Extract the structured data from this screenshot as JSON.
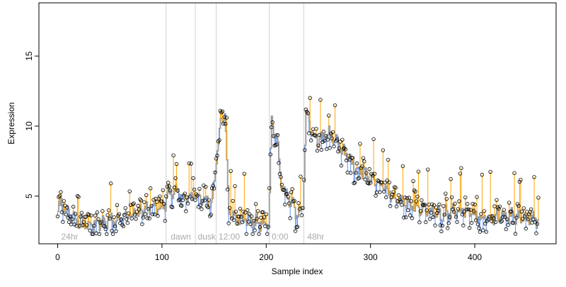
{
  "chart_data": {
    "type": "scatter",
    "xlabel": "Sample index",
    "ylabel": "Expression",
    "xlim": [
      -18,
      478
    ],
    "ylim": [
      1.6,
      18.8
    ],
    "x_ticks": [
      0,
      100,
      200,
      300,
      400
    ],
    "y_ticks": [
      5,
      10,
      15
    ],
    "grid": false,
    "colors": {
      "fitted_line": "#a0a0a0",
      "residual_above": "#ffa500",
      "residual_below": "#6495ed",
      "points_stroke": "#000000",
      "vlines": "#d3d3d3",
      "annotation_text": "#a9a9a9"
    },
    "vlines": [
      104,
      132,
      152,
      203,
      236
    ],
    "annotations": [
      {
        "x": 2,
        "label": "24hr"
      },
      {
        "x": 107,
        "label": "dawn"
      },
      {
        "x": 133,
        "label": "dusk"
      },
      {
        "x": 153,
        "label": "12:00"
      },
      {
        "x": 204,
        "label": "0:00"
      },
      {
        "x": 238,
        "label": "48hr"
      }
    ],
    "anchors": [
      [
        0,
        3.8
      ],
      [
        3,
        4.5
      ],
      [
        6,
        4.0
      ],
      [
        10,
        3.7
      ],
      [
        15,
        3.4
      ],
      [
        20,
        3.2
      ],
      [
        25,
        3.0
      ],
      [
        30,
        3.0
      ],
      [
        40,
        3.0
      ],
      [
        50,
        3.2
      ],
      [
        60,
        3.4
      ],
      [
        70,
        3.6
      ],
      [
        80,
        3.9
      ],
      [
        90,
        4.3
      ],
      [
        95,
        4.2
      ],
      [
        100,
        4.0
      ],
      [
        105,
        5.0
      ],
      [
        110,
        5.4
      ],
      [
        120,
        5.1
      ],
      [
        130,
        5.0
      ],
      [
        140,
        4.6
      ],
      [
        148,
        4.7
      ],
      [
        152,
        7.5
      ],
      [
        156,
        10.3
      ],
      [
        160,
        11.3
      ],
      [
        164,
        4.0
      ],
      [
        170,
        3.4
      ],
      [
        180,
        3.3
      ],
      [
        190,
        3.1
      ],
      [
        198,
        3.0
      ],
      [
        202,
        2.9
      ],
      [
        205,
        10.3
      ],
      [
        210,
        9.0
      ],
      [
        215,
        5.4
      ],
      [
        220,
        5.0
      ],
      [
        225,
        4.3
      ],
      [
        230,
        3.8
      ],
      [
        235,
        4.2
      ],
      [
        238,
        11.0
      ],
      [
        245,
        9.5
      ],
      [
        250,
        9.0
      ],
      [
        260,
        9.5
      ],
      [
        270,
        8.5
      ],
      [
        275,
        8.0
      ],
      [
        280,
        7.5
      ],
      [
        290,
        6.8
      ],
      [
        300,
        6.2
      ],
      [
        310,
        5.8
      ],
      [
        320,
        5.0
      ],
      [
        330,
        4.6
      ],
      [
        340,
        4.3
      ],
      [
        350,
        4.0
      ],
      [
        360,
        3.8
      ],
      [
        370,
        3.7
      ],
      [
        380,
        4.0
      ],
      [
        390,
        3.9
      ],
      [
        400,
        3.6
      ],
      [
        410,
        3.5
      ],
      [
        420,
        3.5
      ],
      [
        430,
        3.6
      ],
      [
        440,
        3.5
      ],
      [
        450,
        3.4
      ],
      [
        461,
        3.3
      ]
    ],
    "n_points": 462
  }
}
